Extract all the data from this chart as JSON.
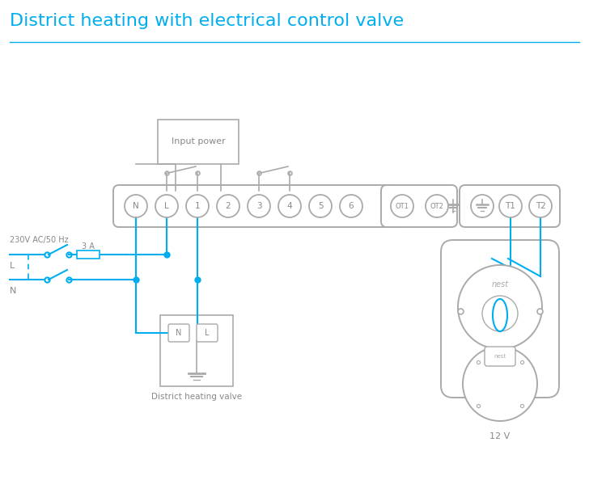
{
  "title": "District heating with electrical control valve",
  "title_color": "#00AEEF",
  "title_fontsize": 16,
  "line_color": "#00AEEF",
  "gray_color": "#888888",
  "light_gray": "#AAAAAA",
  "bg_color": "#FFFFFF",
  "terminal_labels": [
    "N",
    "L",
    "1",
    "2",
    "3",
    "4",
    "5",
    "6"
  ],
  "ot_labels": [
    "OT1",
    "OT2"
  ],
  "t_labels": [
    "T1",
    "T2"
  ],
  "note_3A": "3 A",
  "label_230v": "230V AC/50 Hz",
  "label_L": "L",
  "label_N": "N",
  "label_valve": "District heating valve",
  "label_12v": "12 V",
  "label_input_power": "Input power",
  "label_nest": "nest"
}
